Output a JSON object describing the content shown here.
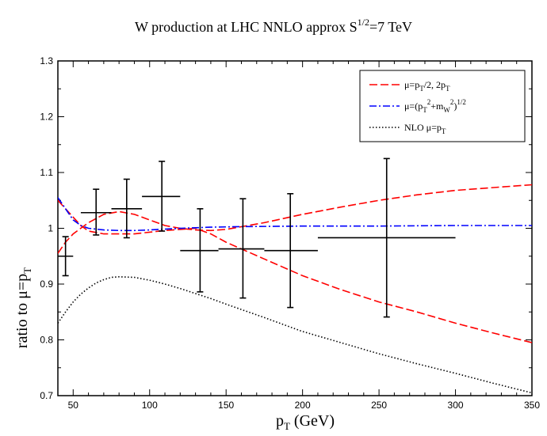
{
  "chart_data": {
    "type": "line",
    "title_main": "W production at LHC    NNLO approx   S",
    "title_sup": "1/2",
    "title_tail": "=7 TeV",
    "xlabel": {
      "base": "p",
      "sub": "T",
      "tail": " (GeV)"
    },
    "ylabel": {
      "base": "ratio to μ=p",
      "sub": "T"
    },
    "xlim": [
      40,
      350
    ],
    "ylim": [
      0.7,
      1.3
    ],
    "xticks": [
      50,
      100,
      150,
      200,
      250,
      300,
      350
    ],
    "yticks": [
      0.7,
      0.8,
      0.9,
      1.0,
      1.1,
      1.2,
      1.3
    ],
    "ytick_labels": [
      "0.7",
      "0.8",
      "0.9",
      "1",
      "1.1",
      "1.2",
      "1.3"
    ],
    "legend_position": "top-right",
    "series": [
      {
        "name": "μ=p_T/2, 2p_T upper",
        "color": "#ff0000",
        "style": "dashed",
        "x": [
          40,
          45,
          50,
          55,
          60,
          70,
          80,
          90,
          100,
          110,
          120,
          130,
          140,
          150,
          175,
          200,
          225,
          250,
          275,
          300,
          325,
          350
        ],
        "y": [
          0.955,
          0.975,
          0.99,
          1.0,
          1.01,
          1.025,
          1.03,
          1.025,
          1.015,
          1.005,
          1.0,
          0.997,
          0.996,
          0.998,
          1.01,
          1.025,
          1.038,
          1.05,
          1.06,
          1.068,
          1.073,
          1.078
        ]
      },
      {
        "name": "μ=p_T/2, 2p_T lower",
        "color": "#ff0000",
        "style": "dashed",
        "x": [
          40,
          45,
          50,
          55,
          60,
          70,
          80,
          90,
          100,
          110,
          120,
          130,
          140,
          150,
          175,
          200,
          225,
          250,
          275,
          300,
          325,
          350
        ],
        "y": [
          1.05,
          1.035,
          1.02,
          1.005,
          0.995,
          0.99,
          0.99,
          0.99,
          0.993,
          0.996,
          0.998,
          1.0,
          0.99,
          0.975,
          0.945,
          0.915,
          0.89,
          0.868,
          0.85,
          0.83,
          0.812,
          0.795
        ]
      },
      {
        "name": "μ=(p_T^2+m_W^2)^1/2",
        "color": "#0000ff",
        "style": "dashdot",
        "x": [
          40,
          45,
          50,
          55,
          60,
          70,
          80,
          90,
          100,
          120,
          140,
          160,
          200,
          250,
          300,
          350
        ],
        "y": [
          1.055,
          1.035,
          1.015,
          1.005,
          1.0,
          0.997,
          0.996,
          0.996,
          0.997,
          1.0,
          1.002,
          1.003,
          1.004,
          1.004,
          1.005,
          1.005
        ]
      },
      {
        "name": "NLO μ=p_T",
        "color": "#000000",
        "style": "dotted",
        "x": [
          40,
          45,
          50,
          55,
          60,
          65,
          70,
          75,
          80,
          90,
          100,
          110,
          120,
          130,
          140,
          150,
          175,
          200,
          225,
          250,
          275,
          300,
          325,
          350
        ],
        "y": [
          0.83,
          0.85,
          0.868,
          0.882,
          0.893,
          0.902,
          0.908,
          0.912,
          0.913,
          0.912,
          0.907,
          0.9,
          0.892,
          0.883,
          0.874,
          0.864,
          0.84,
          0.815,
          0.795,
          0.775,
          0.757,
          0.74,
          0.722,
          0.705
        ]
      }
    ],
    "data_points": {
      "name": "data",
      "color": "#000000",
      "points": [
        {
          "x": 45,
          "y": 0.95,
          "xlo": 40,
          "xhi": 50,
          "ylo": 0.915,
          "yhi": 0.985
        },
        {
          "x": 65,
          "y": 1.028,
          "xlo": 55,
          "xhi": 75,
          "ylo": 0.988,
          "yhi": 1.07
        },
        {
          "x": 85,
          "y": 1.035,
          "xlo": 75,
          "xhi": 95,
          "ylo": 0.983,
          "yhi": 1.088
        },
        {
          "x": 108,
          "y": 1.057,
          "xlo": 95,
          "xhi": 120,
          "ylo": 0.995,
          "yhi": 1.12
        },
        {
          "x": 133,
          "y": 0.96,
          "xlo": 120,
          "xhi": 145,
          "ylo": 0.886,
          "yhi": 1.035
        },
        {
          "x": 161,
          "y": 0.963,
          "xlo": 145,
          "xhi": 175,
          "ylo": 0.875,
          "yhi": 1.053
        },
        {
          "x": 192,
          "y": 0.96,
          "xlo": 175,
          "xhi": 210,
          "ylo": 0.858,
          "yhi": 1.062
        },
        {
          "x": 255,
          "y": 0.983,
          "xlo": 210,
          "xhi": 300,
          "ylo": 0.841,
          "yhi": 1.125
        }
      ]
    },
    "legend": [
      {
        "parts": [
          [
            "μ=p",
            ""
          ],
          [
            "T",
            "sub"
          ],
          [
            "/2, 2p",
            ""
          ],
          [
            "T",
            "sub"
          ]
        ],
        "color": "#ff0000",
        "style": "dashed"
      },
      {
        "parts": [
          [
            "μ=(p",
            ""
          ],
          [
            "T",
            "sub"
          ],
          [
            "2",
            "sup"
          ],
          [
            "+m",
            ""
          ],
          [
            "W",
            "sub"
          ],
          [
            "2",
            "sup"
          ],
          [
            ")",
            ""
          ],
          [
            "1/2",
            "sup"
          ]
        ],
        "color": "#0000ff",
        "style": "dashdot"
      },
      {
        "parts": [
          [
            "NLO μ=p",
            ""
          ],
          [
            "T",
            "sub"
          ]
        ],
        "color": "#000000",
        "style": "dotted"
      }
    ]
  }
}
